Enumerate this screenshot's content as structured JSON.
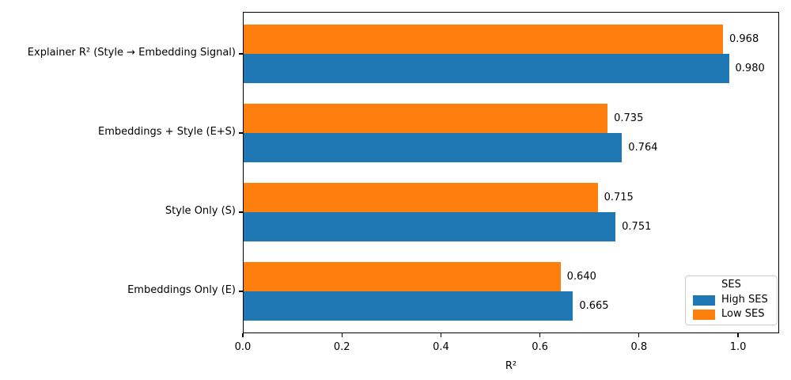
{
  "chart_data": {
    "type": "bar",
    "orientation": "horizontal",
    "title": "",
    "xlabel": "R²",
    "ylabel": "",
    "xlim": [
      0,
      1.083
    ],
    "xticks": [
      0.0,
      0.2,
      0.4,
      0.6,
      0.8,
      1.0
    ],
    "grid": false,
    "categories_top_to_bottom": [
      "Explainer R² (Style → Embedding Signal)",
      "Embeddings + Style (E+S)",
      "Style Only (S)",
      "Embeddings Only (E)"
    ],
    "series": [
      {
        "name": "Low SES",
        "color": "#ff7f0e",
        "position_in_group": "top",
        "values": [
          0.968,
          0.735,
          0.715,
          0.64
        ]
      },
      {
        "name": "High SES",
        "color": "#1f77b4",
        "position_in_group": "bottom",
        "values": [
          0.98,
          0.764,
          0.751,
          0.665
        ]
      }
    ],
    "value_labels_decimals": 3,
    "legend": {
      "title": "SES",
      "position": "lower right",
      "items": [
        {
          "label": "High SES",
          "color": "#1f77b4"
        },
        {
          "label": "Low SES",
          "color": "#ff7f0e"
        }
      ]
    }
  }
}
